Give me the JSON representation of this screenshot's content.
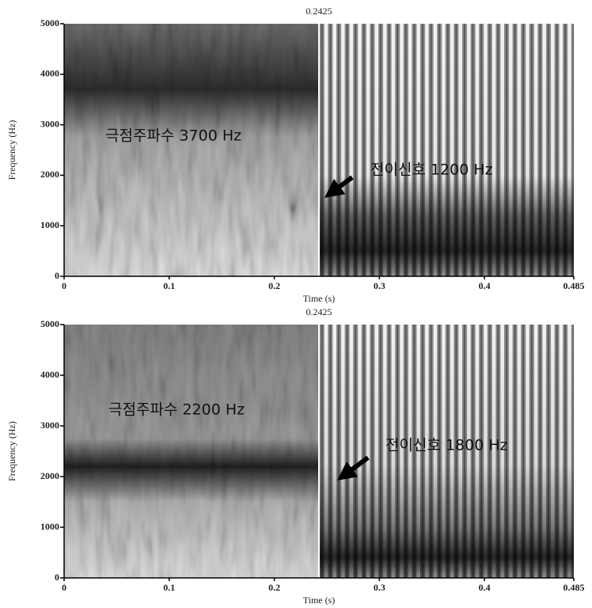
{
  "chart_data": [
    {
      "type": "spectrogram",
      "xlabel": "Time (s)",
      "ylabel": "Frequency (Hz)",
      "xlim": [
        0,
        0.485
      ],
      "ylim": [
        0,
        5000
      ],
      "xticks": [
        0,
        0.1,
        0.2,
        0.3,
        0.4,
        0.485
      ],
      "yticks": [
        0,
        1000,
        2000,
        3000,
        4000,
        5000
      ],
      "cursor": 0.2425,
      "annotations": [
        "극점주파수  3700 Hz",
        "전이신호 1200 Hz"
      ]
    },
    {
      "type": "spectrogram",
      "xlabel": "Time (s)",
      "ylabel": "Frequency (Hz)",
      "xlim": [
        0,
        0.485
      ],
      "ylim": [
        0,
        5000
      ],
      "xticks": [
        0,
        0.1,
        0.2,
        0.3,
        0.4,
        0.485
      ],
      "yticks": [
        0,
        1000,
        2000,
        3000,
        4000,
        5000
      ],
      "cursor": 0.2425,
      "annotations": [
        "극점주파수  2200 Hz",
        "전이신호 1800 Hz"
      ]
    }
  ]
}
